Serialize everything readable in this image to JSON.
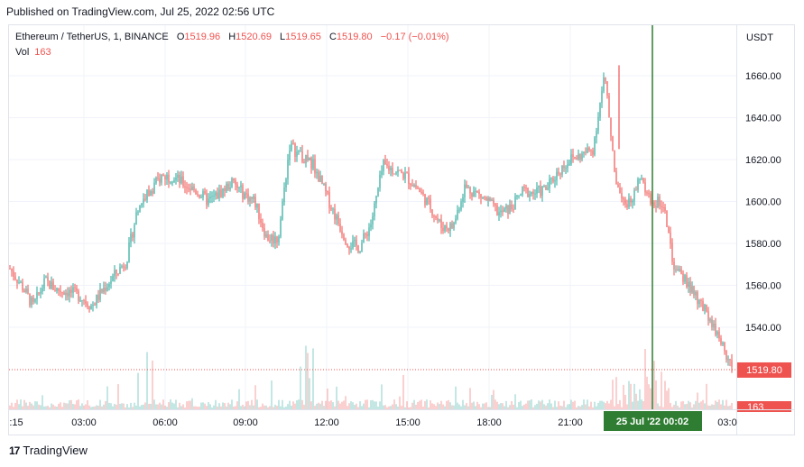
{
  "header": {
    "published": "Published on TradingView.com, Jul 25, 2022 02:56 UTC"
  },
  "legend": {
    "symbol": "Ethereum / TetherUS, 1, BINANCE",
    "o_label": "O",
    "o": "1519.96",
    "h_label": "H",
    "h": "1520.69",
    "l_label": "L",
    "l": "1519.65",
    "c_label": "C",
    "c": "1519.80",
    "change": "−0.17 (−0.01%)",
    "vol_label": "Vol",
    "vol": "163"
  },
  "footer": {
    "brand": "TradingView"
  },
  "colors": {
    "up": "#26a69a",
    "down": "#ef5350",
    "crosshair": "#2e7d32",
    "grid": "#f0f3fa"
  },
  "chart_data": {
    "type": "candlestick",
    "currency": "USDT",
    "y_ticks": [
      "1540.00",
      "1560.00",
      "1580.00",
      "1600.00",
      "1620.00",
      "1640.00",
      "1660.00"
    ],
    "ylim": [
      1520,
      1670
    ],
    "x_ticks": [
      ":15",
      "03:00",
      "06:00",
      "09:00",
      "12:00",
      "15:00",
      "18:00",
      "21:00",
      "03:0"
    ],
    "crosshair_label": "25 Jul '22   00:02",
    "last_price_label": "1519.80",
    "last_volume_label": "163",
    "price_path": [
      [
        "00:15",
        1568
      ],
      [
        "01:00",
        1560
      ],
      [
        "01:30",
        1550
      ],
      [
        "02:00",
        1562
      ],
      [
        "02:30",
        1558
      ],
      [
        "03:00",
        1557
      ],
      [
        "03:30",
        1555
      ],
      [
        "04:00",
        1550
      ],
      [
        "04:30",
        1558
      ],
      [
        "05:00",
        1565
      ],
      [
        "05:20",
        1572
      ],
      [
        "05:30",
        1598
      ],
      [
        "06:00",
        1605
      ],
      [
        "06:30",
        1612
      ],
      [
        "07:00",
        1612
      ],
      [
        "07:30",
        1608
      ],
      [
        "08:00",
        1605
      ],
      [
        "08:30",
        1600
      ],
      [
        "09:00",
        1604
      ],
      [
        "09:30",
        1609
      ],
      [
        "10:00",
        1604
      ],
      [
        "10:30",
        1600
      ],
      [
        "11:00",
        1583
      ],
      [
        "11:20",
        1582
      ],
      [
        "11:30",
        1627
      ],
      [
        "12:00",
        1621
      ],
      [
        "12:30",
        1618
      ],
      [
        "13:00",
        1605
      ],
      [
        "13:20",
        1592
      ],
      [
        "13:30",
        1580
      ],
      [
        "14:00",
        1578
      ],
      [
        "14:30",
        1590
      ],
      [
        "14:45",
        1617
      ],
      [
        "15:00",
        1615
      ],
      [
        "15:30",
        1612
      ],
      [
        "16:00",
        1606
      ],
      [
        "16:20",
        1598
      ],
      [
        "16:30",
        1588
      ],
      [
        "17:00",
        1588
      ],
      [
        "17:20",
        1607
      ],
      [
        "17:40",
        1604
      ],
      [
        "18:00",
        1600
      ],
      [
        "18:30",
        1594
      ],
      [
        "19:00",
        1597
      ],
      [
        "19:20",
        1605
      ],
      [
        "20:00",
        1604
      ],
      [
        "20:30",
        1606
      ],
      [
        "21:00",
        1614
      ],
      [
        "21:30",
        1620
      ],
      [
        "22:00",
        1622
      ],
      [
        "22:30",
        1625
      ],
      [
        "22:45",
        1660
      ],
      [
        "23:00",
        1610
      ],
      [
        "23:30",
        1598
      ],
      [
        "23:45",
        1611
      ],
      [
        "00:10",
        1600
      ],
      [
        "00:20",
        1600
      ],
      [
        "00:40",
        1567
      ],
      [
        "01:00",
        1562
      ],
      [
        "01:30",
        1552
      ],
      [
        "02:00",
        1545
      ],
      [
        "02:30",
        1533
      ],
      [
        "02:56",
        1520
      ]
    ]
  }
}
